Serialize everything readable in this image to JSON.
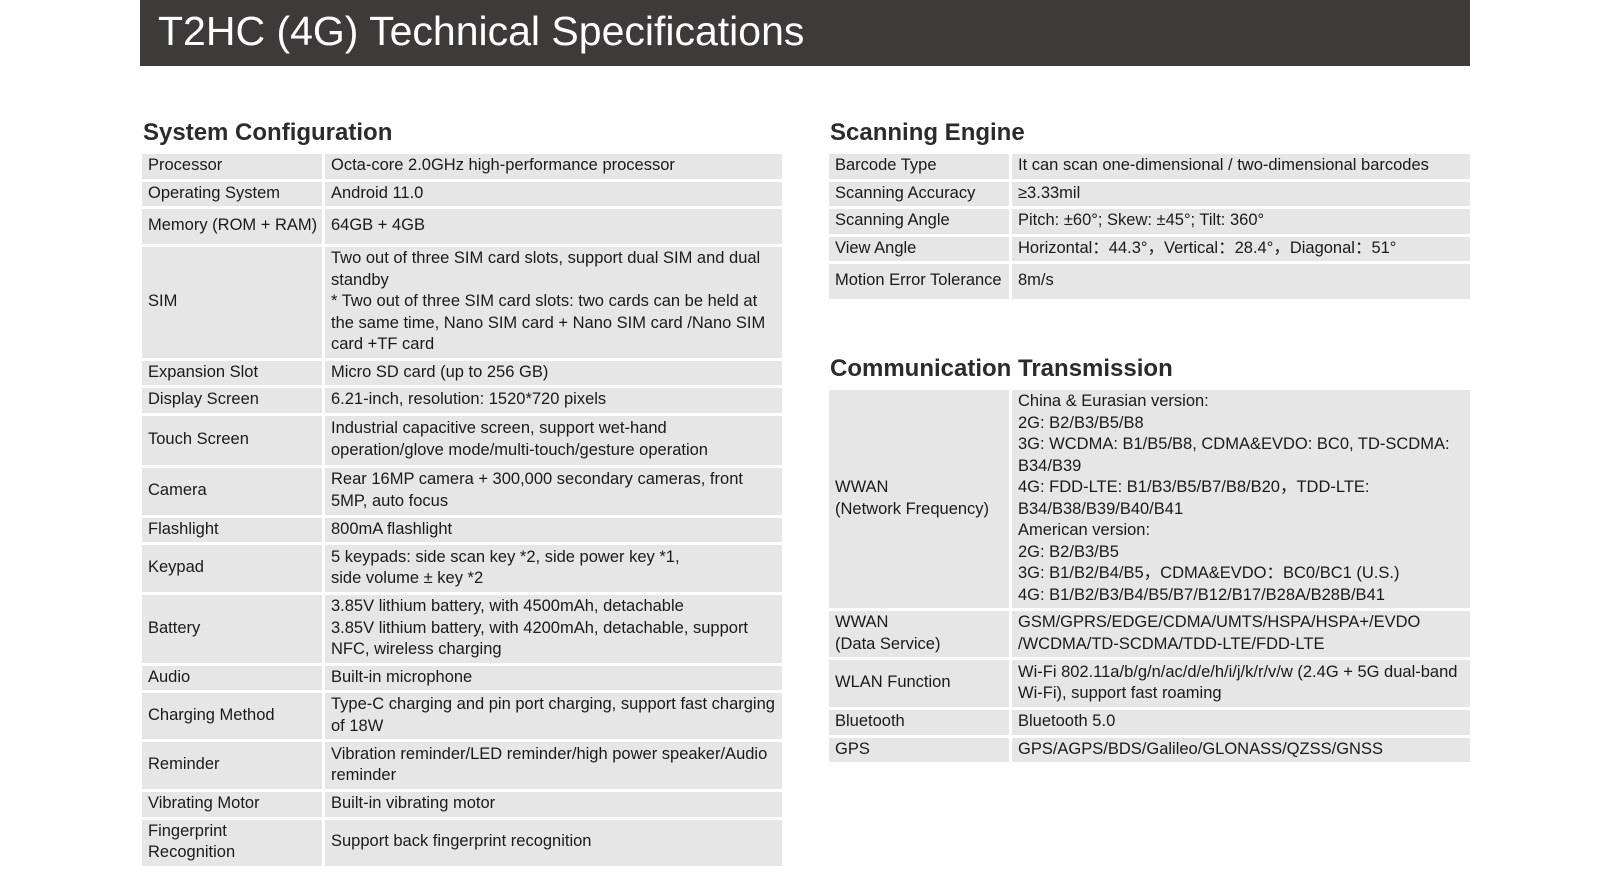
{
  "title": "T2HC (4G) Technical Specifications",
  "system": {
    "heading": "System Configuration",
    "rows": [
      {
        "label": "Processor",
        "value": "Octa-core 2.0GHz high-performance processor"
      },
      {
        "label": "Operating System",
        "value": "Android 11.0"
      },
      {
        "label": "Memory (ROM + RAM)",
        "value": "64GB + 4GB"
      },
      {
        "label": "SIM",
        "value": "Two out of three SIM card slots, support dual SIM and dual standby\n* Two out of three SIM card slots: two cards can be held at the same time, Nano SIM card + Nano SIM card /Nano SIM card +TF card"
      },
      {
        "label": "Expansion Slot",
        "value": "Micro SD card (up to 256 GB)"
      },
      {
        "label": "Display Screen",
        "value": "6.21-inch, resolution: 1520*720 pixels"
      },
      {
        "label": "Touch Screen",
        "value": "Industrial capacitive screen, support wet-hand operation/glove mode/multi-touch/gesture operation"
      },
      {
        "label": "Camera",
        "value": "Rear 16MP camera + 300,000 secondary cameras, front 5MP, auto focus"
      },
      {
        "label": "Flashlight",
        "value": "800mA flashlight"
      },
      {
        "label": "Keypad",
        "value": "5 keypads: side scan key *2, side power  key *1,\nside volume ± key *2"
      },
      {
        "label": "Battery",
        "value": "3.85V lithium battery, with 4500mAh, detachable\n3.85V lithium battery, with 4200mAh, detachable, support NFC, wireless charging"
      },
      {
        "label": "Audio",
        "value": "Built-in microphone"
      },
      {
        "label": "Charging Method",
        "value": "Type-C charging and pin port charging, support fast charging of 18W"
      },
      {
        "label": "Reminder",
        "value": "Vibration reminder/LED reminder/high power speaker/Audio reminder"
      },
      {
        "label": "Vibrating Motor",
        "value": "Built-in vibrating motor"
      },
      {
        "label": "Fingerprint Recognition",
        "value": "Support back fingerprint recognition"
      }
    ]
  },
  "scanning": {
    "heading": "Scanning Engine",
    "rows": [
      {
        "label": "Barcode Type",
        "value": "It can scan one-dimensional / two-dimensional barcodes"
      },
      {
        "label": "Scanning Accuracy",
        "value": "≥3.33mil"
      },
      {
        "label": "Scanning Angle",
        "value": "Pitch: ±60°;   Skew: ±45°;   Tilt:  360°"
      },
      {
        "label": "View Angle",
        "value": "Horizontal：44.3°，Vertical：28.4°，Diagonal：51°"
      },
      {
        "label": "Motion Error Tolerance",
        "value": "8m/s"
      }
    ]
  },
  "communication": {
    "heading": "Communication Transmission",
    "rows": [
      {
        "label": "WWAN\n(Network Frequency)",
        "value": "China & Eurasian version:\n2G: B2/B3/B5/B8\n3G: WCDMA: B1/B5/B8, CDMA&EVDO: BC0, TD-SCDMA: B34/B39\n4G: FDD-LTE: B1/B3/B5/B7/B8/B20，TDD-LTE: B34/B38/B39/B40/B41\nAmerican version:\n2G: B2/B3/B5\n3G: B1/B2/B4/B5，CDMA&EVDO：BC0/BC1 (U.S.)\n4G: B1/B2/B3/B4/B5/B7/B12/B17/B28A/B28B/B41"
      },
      {
        "label": "WWAN\n(Data Service)",
        "value": "GSM/GPRS/EDGE/CDMA/UMTS/HSPA/HSPA+/EVDO\n/WCDMA/TD-SCDMA/TDD-LTE/FDD-LTE"
      },
      {
        "label": "WLAN Function",
        "value": "Wi-Fi 802.11a/b/g/n/ac/d/e/h/i/j/k/r/v/w (2.4G + 5G dual-band Wi-Fi), support fast roaming"
      },
      {
        "label": "Bluetooth",
        "value": "Bluetooth 5.0"
      },
      {
        "label": "GPS",
        "value": "GPS/AGPS/BDS/Galileo/GLONASS/QZSS/GNSS"
      }
    ]
  }
}
